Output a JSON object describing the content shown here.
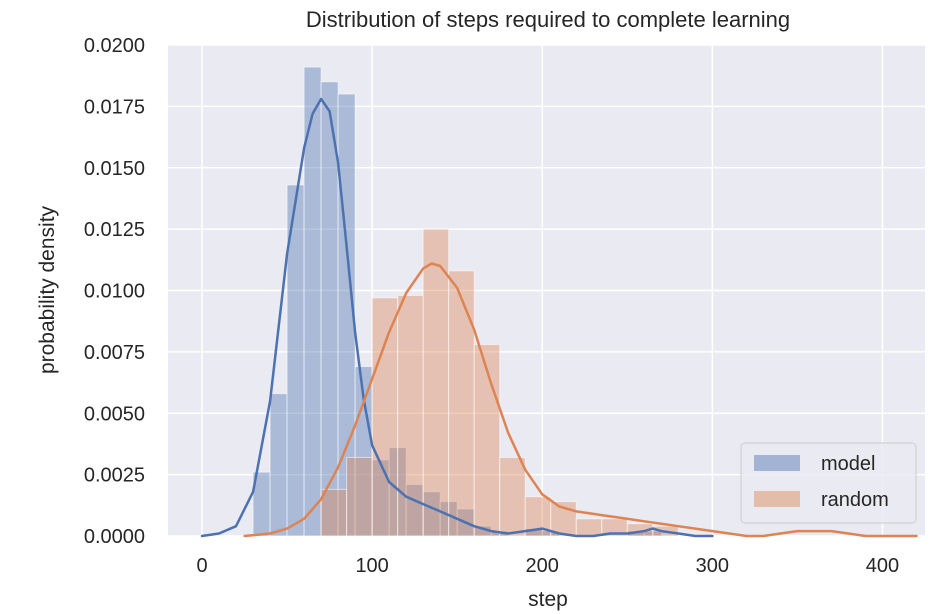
{
  "chart_data": {
    "type": "histogram",
    "title": "Distribution of steps required to complete learning",
    "xlabel": "step",
    "ylabel": "probability density",
    "xlim": [
      -20,
      425
    ],
    "ylim": [
      0,
      0.02
    ],
    "x_ticks": [
      0,
      100,
      200,
      300,
      400
    ],
    "x_tick_labels": [
      "0",
      "100",
      "200",
      "300",
      "400"
    ],
    "y_ticks": [
      0,
      0.0025,
      0.005,
      0.0075,
      0.01,
      0.0125,
      0.015,
      0.0175,
      0.02
    ],
    "y_tick_labels": [
      "0.0000",
      "0.0025",
      "0.0050",
      "0.0075",
      "0.0100",
      "0.0125",
      "0.0150",
      "0.0175",
      "0.0200"
    ],
    "grid": true,
    "legend_position": "lower-right",
    "colors": {
      "background": "#eaeaf2",
      "grid": "#ffffff",
      "model": "#4c72b0",
      "random": "#dd8452"
    },
    "series": [
      {
        "name": "model",
        "histogram": {
          "bin_edges": [
            30,
            40,
            50,
            60,
            70,
            80,
            90,
            100,
            110,
            120,
            130,
            140,
            150,
            160,
            170,
            180,
            190,
            200,
            210,
            220,
            230,
            240,
            250,
            260,
            270
          ],
          "densities": [
            0.0026,
            0.0058,
            0.0143,
            0.0191,
            0.0185,
            0.018,
            0.0069,
            0.0031,
            0.0036,
            0.0021,
            0.0018,
            0.0014,
            0.0011,
            0.0004,
            0.0002,
            0.0,
            0.0003,
            0.0002,
            0.0,
            0.0,
            0.0,
            0.0,
            0.0002,
            0.0002
          ]
        },
        "kde": {
          "x": [
            0,
            10,
            20,
            30,
            40,
            50,
            60,
            65,
            70,
            75,
            80,
            85,
            90,
            95,
            100,
            110,
            120,
            130,
            140,
            150,
            160,
            170,
            180,
            190,
            200,
            210,
            220,
            230,
            240,
            250,
            260,
            265,
            270,
            280,
            290,
            300
          ],
          "y": [
            0.0,
            0.0001,
            0.0004,
            0.0018,
            0.0055,
            0.0115,
            0.0158,
            0.0172,
            0.0178,
            0.0173,
            0.0152,
            0.0118,
            0.0083,
            0.0056,
            0.0037,
            0.0022,
            0.0016,
            0.0013,
            0.001,
            0.0007,
            0.0004,
            0.0002,
            0.0001,
            0.0002,
            0.0003,
            0.0001,
            0.0,
            0.0,
            0.0001,
            0.0001,
            0.0002,
            0.0003,
            0.0002,
            0.0001,
            0.0,
            0.0
          ]
        }
      },
      {
        "name": "random",
        "histogram": {
          "bin_edges": [
            70,
            85,
            100,
            115,
            130,
            145,
            160,
            175,
            190,
            205,
            220,
            235,
            250,
            265,
            280
          ],
          "densities": [
            0.0019,
            0.0032,
            0.0097,
            0.0098,
            0.0125,
            0.0108,
            0.0078,
            0.0032,
            0.0016,
            0.0014,
            0.0007,
            0.0007,
            0.0005,
            0.0004
          ]
        },
        "kde": {
          "x": [
            25,
            40,
            50,
            60,
            70,
            80,
            90,
            100,
            110,
            120,
            130,
            135,
            140,
            150,
            160,
            170,
            180,
            190,
            200,
            210,
            220,
            230,
            240,
            250,
            260,
            270,
            280,
            290,
            300,
            310,
            320,
            330,
            340,
            350,
            360,
            370,
            380,
            390,
            400,
            410,
            420
          ],
          "y": [
            0.0,
            0.0001,
            0.0003,
            0.0007,
            0.0015,
            0.0028,
            0.0045,
            0.0064,
            0.0083,
            0.0099,
            0.0109,
            0.0111,
            0.011,
            0.0101,
            0.0084,
            0.0062,
            0.0042,
            0.0027,
            0.0017,
            0.0012,
            0.001,
            0.0009,
            0.0008,
            0.0007,
            0.0006,
            0.0005,
            0.0004,
            0.0003,
            0.0002,
            0.0001,
            0.0,
            0.0,
            0.0001,
            0.0002,
            0.0002,
            0.0002,
            0.0001,
            0.0,
            0.0,
            0.0,
            0.0
          ]
        }
      }
    ]
  }
}
